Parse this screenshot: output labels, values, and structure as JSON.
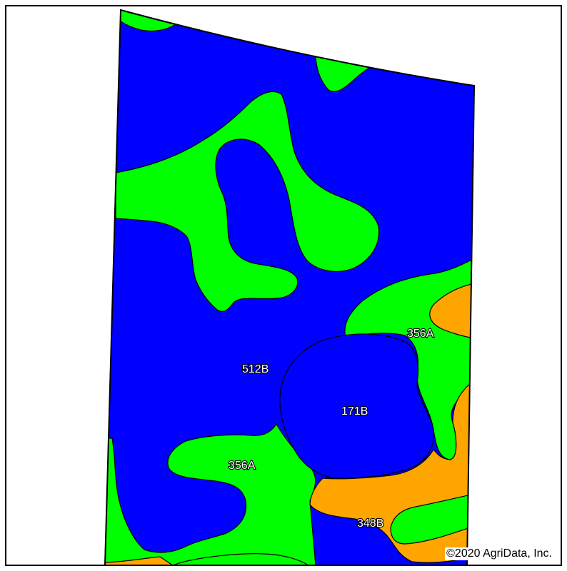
{
  "map": {
    "colors": {
      "blue": "#0000ff",
      "green": "#00ff00",
      "orange": "#ffa500",
      "outline": "#000000"
    },
    "labels": {
      "soil_512b": "512B",
      "soil_171b": "171B",
      "soil_356a_left": "356A",
      "soil_356a_right": "356A",
      "soil_348b": "348B"
    },
    "copyright": "©2020 AgriData, Inc."
  }
}
